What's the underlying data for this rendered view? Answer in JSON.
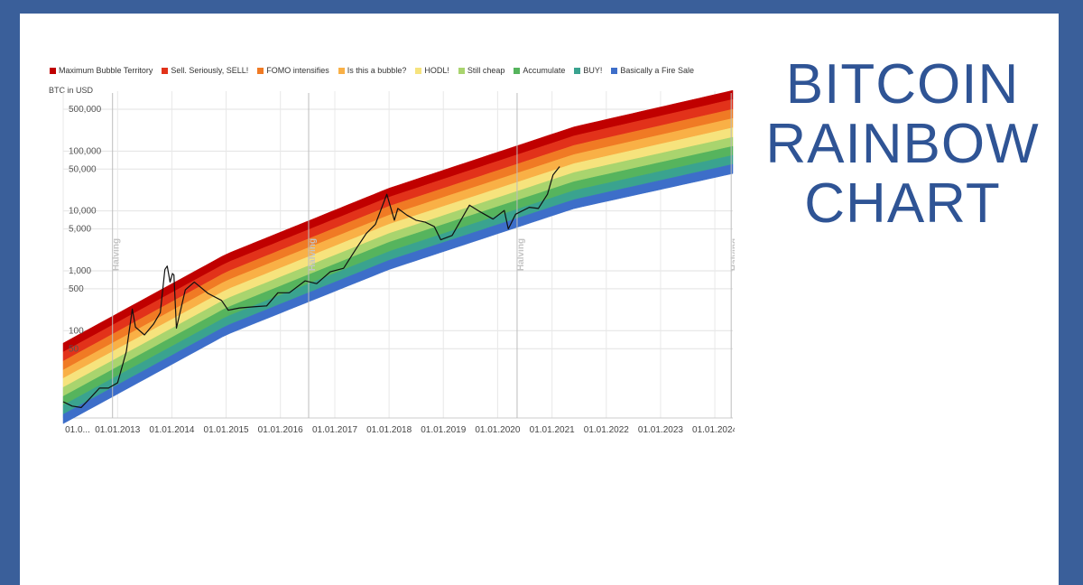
{
  "title": [
    "BITCOIN",
    "RAINBOW",
    "CHART"
  ],
  "colors": {
    "frame": "#3a5f9a",
    "title": "#2f5495",
    "price_line": "#111111"
  },
  "chart_data": {
    "type": "line",
    "ylabel": "BTC in USD",
    "y_scale": "log",
    "ylim": [
      4,
      1000000
    ],
    "xlim": [
      "2012-01-01",
      "2024-05-01"
    ],
    "y_ticks": [
      {
        "value": 500000,
        "label": "500,000"
      },
      {
        "value": 100000,
        "label": "100,000"
      },
      {
        "value": 50000,
        "label": "50,000"
      },
      {
        "value": 10000,
        "label": "10,000"
      },
      {
        "value": 5000,
        "label": "5,000"
      },
      {
        "value": 1000,
        "label": "1,000"
      },
      {
        "value": 500,
        "label": "500"
      },
      {
        "value": 100,
        "label": "100"
      },
      {
        "value": 50,
        "label": "50"
      }
    ],
    "x_ticks": [
      {
        "value": "2012-01-01",
        "label": "01.0..."
      },
      {
        "value": "2013-01-01",
        "label": "01.01.2013"
      },
      {
        "value": "2014-01-01",
        "label": "01.01.2014"
      },
      {
        "value": "2015-01-01",
        "label": "01.01.2015"
      },
      {
        "value": "2016-01-01",
        "label": "01.01.2016"
      },
      {
        "value": "2017-01-01",
        "label": "01.01.2017"
      },
      {
        "value": "2018-01-01",
        "label": "01.01.2018"
      },
      {
        "value": "2019-01-01",
        "label": "01.01.2019"
      },
      {
        "value": "2020-01-01",
        "label": "01.01.2020"
      },
      {
        "value": "2021-01-01",
        "label": "01.01.2021"
      },
      {
        "value": "2022-01-01",
        "label": "01.01.2022"
      },
      {
        "value": "2023-01-01",
        "label": "01.01.2023"
      },
      {
        "value": "2024-01-01",
        "label": "01.01.2024"
      }
    ],
    "halvings": [
      {
        "date": "2012-11-28",
        "label": "Halving"
      },
      {
        "date": "2016-07-09",
        "label": "Halving"
      },
      {
        "date": "2020-05-11",
        "label": "Halving"
      },
      {
        "date": "2024-04-20",
        "label": "Halving"
      }
    ],
    "bands": [
      {
        "name": "Maximum Bubble Territory",
        "color": "#c00000",
        "lower": [
          44,
          1350,
          17000,
          180000,
          730000
        ]
      },
      {
        "name": "Sell. Seriously, SELL!",
        "color": "#e2321a",
        "lower": [
          31,
          950,
          12000,
          125000,
          500000
        ]
      },
      {
        "name": "FOMO intensifies",
        "color": "#f07a24",
        "lower": [
          22,
          680,
          8500,
          88000,
          350000
        ]
      },
      {
        "name": "Is this a bubble?",
        "color": "#f9b046",
        "lower": [
          16,
          480,
          6000,
          62000,
          245000
        ]
      },
      {
        "name": "HODL!",
        "color": "#f6e37d",
        "lower": [
          11.3,
          340,
          4200,
          44000,
          170000
        ]
      },
      {
        "name": "Still cheap",
        "color": "#a9d46e",
        "lower": [
          8,
          240,
          3000,
          31000,
          120000
        ]
      },
      {
        "name": "Accumulate",
        "color": "#56b45d",
        "lower": [
          5.7,
          170,
          2100,
          22000,
          85000
        ]
      },
      {
        "name": "BUY!",
        "color": "#3aa38f",
        "lower": [
          4,
          120,
          1500,
          15500,
          60000
        ]
      },
      {
        "name": "Basically a Fire Sale",
        "color": "#3d6ec9",
        "lower": [
          2.8,
          85,
          1050,
          11000,
          42000
        ]
      }
    ],
    "bands_upper": [
      62,
      1900,
      24000,
      255000,
      1030000
    ],
    "bands_x": [
      "2012-01-01",
      "2015-01-01",
      "2018-01-01",
      "2021-06-01",
      "2024-05-01"
    ],
    "series": [
      {
        "x": [
          "2012-01-01",
          "2012-03-01",
          "2012-05-01",
          "2012-07-01",
          "2012-09-01",
          "2012-11-01",
          "2013-01-01",
          "2013-03-01",
          "2013-04-10",
          "2013-05-01",
          "2013-07-01",
          "2013-09-01",
          "2013-10-15",
          "2013-11-15",
          "2013-12-01",
          "2013-12-20",
          "2014-01-05",
          "2014-01-15",
          "2014-02-01",
          "2014-04-01",
          "2014-06-01",
          "2014-09-01",
          "2014-12-01",
          "2015-01-15",
          "2015-04-01",
          "2015-07-01",
          "2015-10-01",
          "2015-12-15",
          "2016-03-01",
          "2016-06-15",
          "2016-09-01",
          "2016-12-01",
          "2017-03-01",
          "2017-06-01",
          "2017-08-01",
          "2017-10-01",
          "2017-12-17",
          "2018-02-06",
          "2018-03-01",
          "2018-05-01",
          "2018-07-01",
          "2018-09-01",
          "2018-11-01",
          "2018-12-15",
          "2019-03-01",
          "2019-06-26",
          "2019-09-01",
          "2019-12-01",
          "2020-02-15",
          "2020-03-13",
          "2020-05-01",
          "2020-08-01",
          "2020-10-01",
          "2020-12-01",
          "2021-01-08",
          "2021-02-21"
        ],
        "values": [
          6.5,
          5.5,
          5.2,
          7.5,
          11,
          11,
          13.5,
          45,
          230,
          115,
          85,
          130,
          200,
          1050,
          1200,
          650,
          900,
          850,
          110,
          480,
          650,
          420,
          320,
          220,
          240,
          250,
          260,
          430,
          430,
          680,
          610,
          960,
          1100,
          2500,
          4200,
          6000,
          19000,
          7000,
          11000,
          8500,
          7000,
          6500,
          5500,
          3300,
          3900,
          12500,
          9800,
          7300,
          10200,
          5000,
          8800,
          11500,
          11000,
          19000,
          40000,
          55000
        ]
      }
    ]
  }
}
